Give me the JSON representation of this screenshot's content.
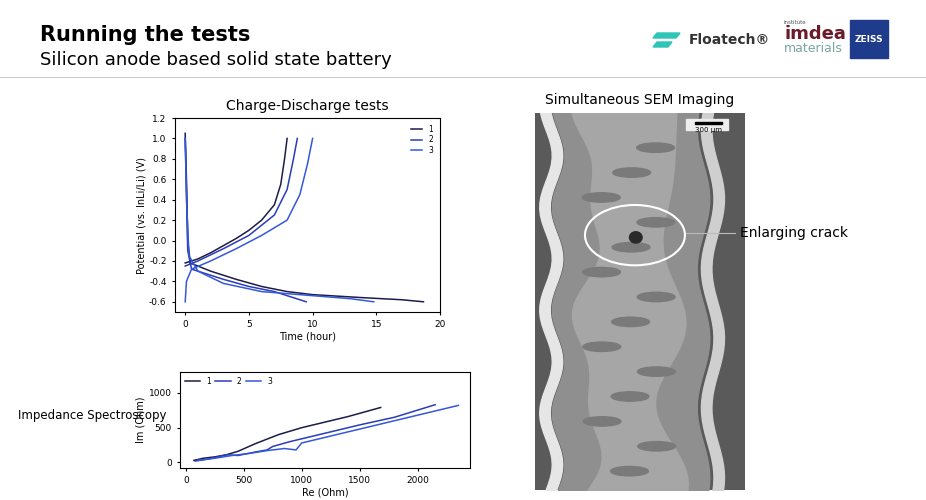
{
  "header": {
    "title": "Running the tests",
    "subtitle": "Silicon anode based solid state battery"
  },
  "logos": {
    "floatech": "Floatech®",
    "imdea_small": "institute",
    "imdea": "imdea",
    "imdea_sub": "materials",
    "zeiss": "ZEISS"
  },
  "chart_data": [
    {
      "type": "line",
      "title": "Charge-Discharge tests",
      "x_label": "Time (hour)",
      "y_label": "Potential (vs. InLi/Li) (V)",
      "xlim": [
        -0.8,
        20
      ],
      "xticks": [
        0,
        5,
        10,
        15,
        20
      ],
      "ylim": [
        -0.7,
        1.2
      ],
      "yticks": [
        {
          "value": -0.6,
          "label": "-0.6"
        },
        {
          "value": -0.4,
          "label": "-0.4"
        },
        {
          "value": -0.2,
          "label": "-0.2"
        },
        {
          "value": 0,
          "label": "0.0"
        },
        {
          "value": 0.2,
          "label": "0.2"
        },
        {
          "value": 0.4,
          "label": "0.4"
        },
        {
          "value": 0.6,
          "label": "0.6"
        },
        {
          "value": 0.8,
          "label": "0.8"
        },
        {
          "value": 1,
          "label": "1.0"
        },
        {
          "value": 1.2,
          "label": "1.2"
        }
      ],
      "legend": "upper right",
      "grid": false,
      "series": [
        {
          "name": "1",
          "color": "#1c1c4a",
          "x": [
            0,
            0.1,
            0.2,
            0.4,
            1,
            2,
            4,
            6,
            8,
            10,
            14,
            17,
            18.7,
            null,
            0,
            1,
            2,
            3,
            4,
            5,
            6,
            7,
            7.5,
            7.8,
            8
          ],
          "values": [
            1.05,
            0.6,
            0,
            -0.22,
            -0.25,
            -0.3,
            -0.38,
            -0.45,
            -0.5,
            -0.53,
            -0.56,
            -0.58,
            -0.6,
            null,
            -0.22,
            -0.18,
            -0.12,
            -0.05,
            0.02,
            0.1,
            0.2,
            0.35,
            0.55,
            0.8,
            1.0
          ]
        },
        {
          "name": "2",
          "color": "#2a3db8",
          "x": [
            0,
            0.1,
            0.2,
            0.5,
            1.5,
            3,
            5,
            7,
            9.5,
            null,
            0,
            1,
            3,
            5,
            7,
            8,
            8.5,
            8.8
          ],
          "values": [
            1.0,
            0.5,
            -0.1,
            -0.28,
            -0.32,
            -0.38,
            -0.45,
            -0.5,
            -0.6,
            null,
            -0.25,
            -0.2,
            -0.08,
            0.05,
            0.25,
            0.5,
            0.8,
            1.0
          ]
        },
        {
          "name": "3",
          "color": "#3558d8",
          "x": [
            0,
            0.1,
            0.3,
            1,
            3,
            6,
            10,
            13,
            14.8,
            null,
            0,
            0.1,
            0.5,
            2,
            4,
            6,
            8,
            9,
            9.6,
            10
          ],
          "values": [
            1.0,
            0.4,
            -0.15,
            -0.3,
            -0.42,
            -0.5,
            -0.54,
            -0.57,
            -0.6,
            null,
            -0.6,
            -0.4,
            -0.28,
            -0.2,
            -0.08,
            0.05,
            0.2,
            0.45,
            0.75,
            1.0
          ]
        }
      ]
    },
    {
      "type": "line",
      "title": "Impedance Spectroscopy",
      "x_label": "Re (Ohm)",
      "y_label": "Im (Ohm)",
      "xlim": [
        -50,
        2450
      ],
      "xticks": [
        0,
        500,
        1000,
        1500,
        2000
      ],
      "ylim": [
        -80,
        1300
      ],
      "yticks": [
        0,
        500,
        1000
      ],
      "legend": "upper left",
      "grid": false,
      "series": [
        {
          "name": "1",
          "color": "#1c1c4a",
          "x": [
            70,
            150,
            250,
            350,
            450,
            600,
            800,
            1000,
            1200,
            1400,
            1680
          ],
          "values": [
            30,
            60,
            80,
            110,
            160,
            270,
            400,
            500,
            580,
            660,
            790
          ]
        },
        {
          "name": "2",
          "color": "#2a3db8",
          "x": [
            80,
            200,
            350,
            450,
            600,
            700,
            750,
            900,
            1200,
            1500,
            1800,
            2150
          ],
          "values": [
            20,
            50,
            110,
            100,
            150,
            180,
            230,
            300,
            420,
            540,
            650,
            830
          ]
        },
        {
          "name": "3",
          "color": "#3558d8",
          "x": [
            100,
            250,
            400,
            550,
            700,
            850,
            950,
            1000,
            1300,
            1700,
            2000,
            2350
          ],
          "values": [
            30,
            60,
            100,
            130,
            170,
            200,
            180,
            280,
            400,
            560,
            680,
            820
          ]
        }
      ]
    }
  ],
  "image": {
    "title": "Simultaneous SEM Imaging",
    "scale_bar": "300 µm",
    "annotation": "Enlarging crack"
  }
}
